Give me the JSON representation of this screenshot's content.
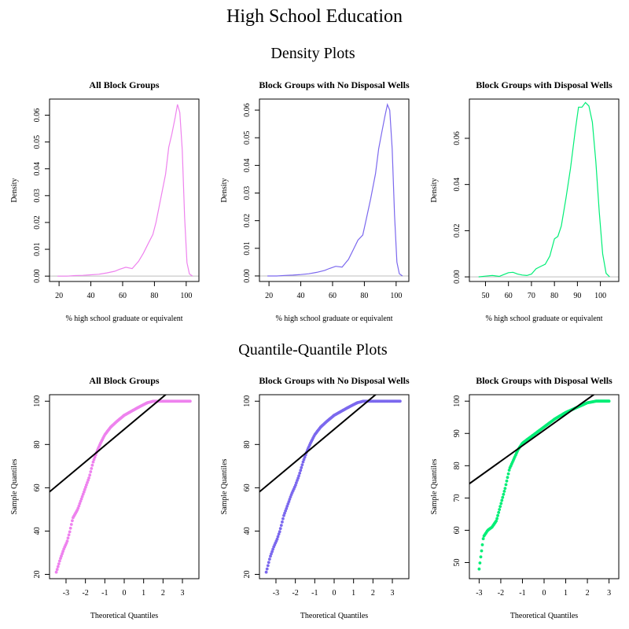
{
  "title": "High School Education",
  "sections": {
    "density": "Density Plots",
    "qq": "Quantile-Quantile Plots"
  },
  "colors": {
    "all": "#ee82ee",
    "no_wells": "#7b68ee",
    "wells": "#00ee76",
    "reference_line": "#000000",
    "zero_line": "#bebebe",
    "axis": "#000000"
  },
  "chart_data": [
    {
      "type": "line",
      "group": "density",
      "title": "All Block Groups",
      "xlabel": "% high school graduate or equivalent",
      "ylabel": "Density",
      "xlim": [
        14,
        108
      ],
      "ylim": [
        -0.002,
        0.066
      ],
      "xticks": [
        20,
        40,
        60,
        80,
        100
      ],
      "yticks": [
        0.0,
        0.01,
        0.02,
        0.03,
        0.04,
        0.05,
        0.06
      ],
      "ytick_labels": [
        "0.00",
        "0.01",
        "0.02",
        "0.03",
        "0.04",
        "0.05",
        "0.06"
      ],
      "color_key": "all",
      "x": [
        19,
        25,
        30,
        35,
        40,
        45,
        50,
        55,
        58,
        62,
        66,
        70,
        73,
        76,
        79,
        81,
        84,
        87,
        89,
        91,
        93,
        94.5,
        96,
        97.5,
        99,
        100.5,
        102,
        104
      ],
      "y": [
        0,
        0,
        0.0002,
        0.0003,
        0.0005,
        0.0007,
        0.0012,
        0.0018,
        0.0025,
        0.0033,
        0.0028,
        0.0055,
        0.0085,
        0.012,
        0.0155,
        0.02,
        0.029,
        0.038,
        0.048,
        0.053,
        0.059,
        0.064,
        0.061,
        0.047,
        0.022,
        0.005,
        0.0008,
        0
      ]
    },
    {
      "type": "line",
      "group": "density",
      "title": "Block Groups with No Disposal Wells",
      "xlabel": "% high school graduate or equivalent",
      "ylabel": "Density",
      "xlim": [
        14,
        108
      ],
      "ylim": [
        -0.002,
        0.064
      ],
      "xticks": [
        20,
        40,
        60,
        80,
        100
      ],
      "yticks": [
        0.0,
        0.01,
        0.02,
        0.03,
        0.04,
        0.05,
        0.06
      ],
      "ytick_labels": [
        "0.00",
        "0.01",
        "0.02",
        "0.03",
        "0.04",
        "0.05",
        "0.06"
      ],
      "color_key": "no_wells",
      "x": [
        19,
        25,
        30,
        35,
        40,
        45,
        50,
        55,
        58,
        62,
        66,
        70,
        73,
        76,
        79,
        81,
        84,
        87,
        89,
        91,
        93,
        94.5,
        96,
        97.5,
        99,
        100.5,
        102,
        104
      ],
      "y": [
        0,
        0,
        0.0002,
        0.0003,
        0.0005,
        0.0008,
        0.0013,
        0.002,
        0.0027,
        0.0035,
        0.0032,
        0.006,
        0.0095,
        0.013,
        0.0148,
        0.02,
        0.028,
        0.037,
        0.046,
        0.052,
        0.058,
        0.062,
        0.06,
        0.046,
        0.022,
        0.005,
        0.0008,
        0
      ]
    },
    {
      "type": "line",
      "group": "density",
      "title": "Block Groups with Disposal Wells",
      "xlabel": "% high school graduate or equivalent",
      "ylabel": "Density",
      "xlim": [
        43,
        108
      ],
      "ylim": [
        -0.002,
        0.077
      ],
      "xticks": [
        50,
        60,
        70,
        80,
        90,
        100
      ],
      "yticks": [
        0.0,
        0.02,
        0.04,
        0.06
      ],
      "ytick_labels": [
        "0.00",
        "0.02",
        "0.04",
        "0.06"
      ],
      "color_key": "wells",
      "x": [
        47,
        50,
        53,
        56,
        58,
        60,
        62,
        64,
        66,
        68,
        70,
        72,
        74,
        76,
        78,
        80,
        81.5,
        83,
        85,
        87,
        89,
        90.5,
        92,
        93.5,
        95,
        96.5,
        98,
        99.5,
        101,
        102.5,
        104
      ],
      "y": [
        0,
        0.0003,
        0.0006,
        0.0002,
        0.001,
        0.0018,
        0.002,
        0.0012,
        0.0008,
        0.0006,
        0.0012,
        0.0035,
        0.0045,
        0.0055,
        0.009,
        0.0165,
        0.0175,
        0.022,
        0.034,
        0.047,
        0.063,
        0.0735,
        0.0735,
        0.0755,
        0.074,
        0.067,
        0.05,
        0.028,
        0.01,
        0.0015,
        0
      ]
    },
    {
      "type": "scatter",
      "group": "qq",
      "title": "All Block Groups",
      "xlabel": "Theoretical Quantiles",
      "ylabel": "Sample Quantiles",
      "xlim": [
        -3.85,
        3.85
      ],
      "ylim": [
        18,
        103
      ],
      "xticks": [
        -3,
        -2,
        -1,
        0,
        1,
        2,
        3
      ],
      "yticks": [
        20,
        40,
        60,
        80,
        100
      ],
      "color_key": "all",
      "line": {
        "intercept": 87.0,
        "slope": 7.5
      },
      "curve": [
        [
          -3.5,
          21
        ],
        [
          -3.3,
          27
        ],
        [
          -3.1,
          32
        ],
        [
          -2.95,
          35
        ],
        [
          -2.8,
          40
        ],
        [
          -2.65,
          46
        ],
        [
          -2.4,
          50
        ],
        [
          -2.2,
          55
        ],
        [
          -2.0,
          60
        ],
        [
          -1.8,
          65
        ],
        [
          -1.6,
          72
        ],
        [
          -1.4,
          77
        ],
        [
          -1.2,
          81
        ],
        [
          -1.0,
          84.5
        ],
        [
          -0.7,
          88
        ],
        [
          -0.4,
          90.5
        ],
        [
          0,
          93.5
        ],
        [
          0.4,
          95.5
        ],
        [
          0.8,
          97.5
        ],
        [
          1.2,
          99.3
        ],
        [
          1.5,
          100
        ],
        [
          2.0,
          100
        ],
        [
          2.5,
          100
        ],
        [
          3.0,
          100
        ],
        [
          3.4,
          100
        ]
      ]
    },
    {
      "type": "scatter",
      "group": "qq",
      "title": "Block Groups with No Disposal Wells",
      "xlabel": "Theoretical Quantiles",
      "ylabel": "Sample Quantiles",
      "xlim": [
        -3.85,
        3.85
      ],
      "ylim": [
        18,
        103
      ],
      "xticks": [
        -3,
        -2,
        -1,
        0,
        1,
        2,
        3
      ],
      "yticks": [
        20,
        40,
        60,
        80,
        100
      ],
      "color_key": "no_wells",
      "line": {
        "intercept": 87.0,
        "slope": 7.5
      },
      "curve": [
        [
          -3.5,
          21
        ],
        [
          -3.3,
          28
        ],
        [
          -3.1,
          33
        ],
        [
          -2.95,
          36
        ],
        [
          -2.8,
          40
        ],
        [
          -2.6,
          47
        ],
        [
          -2.4,
          52
        ],
        [
          -2.2,
          57
        ],
        [
          -2.0,
          61
        ],
        [
          -1.8,
          66
        ],
        [
          -1.6,
          72
        ],
        [
          -1.4,
          77
        ],
        [
          -1.2,
          81
        ],
        [
          -1.0,
          84.5
        ],
        [
          -0.7,
          88
        ],
        [
          -0.4,
          90.5
        ],
        [
          0,
          93.5
        ],
        [
          0.4,
          95.5
        ],
        [
          0.8,
          97.5
        ],
        [
          1.2,
          99.3
        ],
        [
          1.5,
          100
        ],
        [
          2.0,
          100
        ],
        [
          2.5,
          100
        ],
        [
          3.0,
          100
        ],
        [
          3.4,
          100
        ]
      ]
    },
    {
      "type": "scatter",
      "group": "qq",
      "title": "Block Groups with Disposal Wells",
      "xlabel": "Theoretical Quantiles",
      "ylabel": "Sample Quantiles",
      "xlim": [
        -3.45,
        3.45
      ],
      "ylim": [
        45,
        102
      ],
      "xticks": [
        -3,
        -2,
        -1,
        0,
        1,
        2,
        3
      ],
      "yticks": [
        50,
        60,
        70,
        80,
        90,
        100
      ],
      "color_key": "wells",
      "line": {
        "intercept": 91.0,
        "slope": 4.8
      },
      "curve": [
        [
          -3.0,
          48
        ],
        [
          -2.8,
          58
        ],
        [
          -2.6,
          60
        ],
        [
          -2.4,
          61
        ],
        [
          -2.2,
          63
        ],
        [
          -2.0,
          68
        ],
        [
          -1.8,
          73
        ],
        [
          -1.6,
          79
        ],
        [
          -1.4,
          82
        ],
        [
          -1.2,
          85
        ],
        [
          -1.0,
          87
        ],
        [
          -0.8,
          88
        ],
        [
          -0.5,
          89.5
        ],
        [
          0,
          92
        ],
        [
          0.5,
          94.5
        ],
        [
          1.0,
          96.5
        ],
        [
          1.5,
          98
        ],
        [
          2.0,
          99.5
        ],
        [
          2.4,
          100
        ],
        [
          2.8,
          100
        ],
        [
          3.0,
          100
        ]
      ]
    }
  ]
}
